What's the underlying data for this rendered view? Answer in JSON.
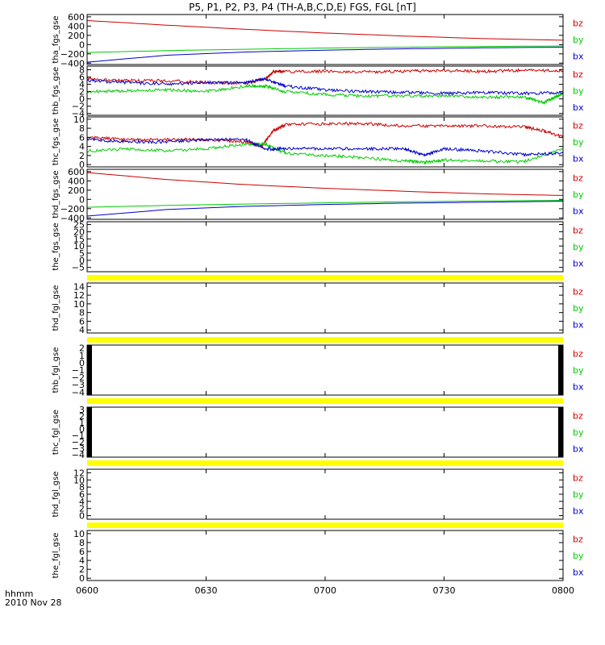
{
  "title": "P5, P1, P2, P3, P4 (TH-A,B,C,D,E) FGS, FGL [nT]",
  "footer": {
    "hhmm": "hhmm",
    "date": "2010 Nov 28"
  },
  "colors": {
    "bz": "#cc0000",
    "by": "#00cc00",
    "bx": "#0000cc",
    "fill": "#ffff00",
    "gap": "#000000"
  },
  "chart_data": {
    "type": "line",
    "x_ticks": [
      "0600",
      "0630",
      "0700",
      "0730",
      "0800"
    ],
    "x_range_minutes": [
      0,
      120
    ],
    "panels": [
      {
        "ylabel": "tha_fgs_gse",
        "yticks": [
          "600",
          "400",
          "200",
          "0",
          "−200",
          "−400"
        ],
        "ylim": [
          -430,
          650
        ],
        "legend": [
          "bz",
          "by",
          "bx"
        ],
        "kind": "lines",
        "series": [
          {
            "name": "bz",
            "x": [
              0,
              20,
              40,
              60,
              80,
              100,
              120
            ],
            "y": [
              520,
              420,
              330,
              250,
              185,
              130,
              95
            ]
          },
          {
            "name": "by",
            "x": [
              0,
              20,
              40,
              60,
              80,
              100,
              120
            ],
            "y": [
              -170,
              -130,
              -100,
              -75,
              -55,
              -40,
              -30
            ]
          },
          {
            "name": "bx",
            "x": [
              0,
              20,
              40,
              60,
              80,
              100,
              120
            ],
            "y": [
              -380,
              -230,
              -160,
              -120,
              -90,
              -70,
              -55
            ]
          }
        ]
      },
      {
        "ylabel": "thb_fgs_gse",
        "yticks": [
          "8",
          "6",
          "4",
          "2",
          "0",
          "−2",
          "−4"
        ],
        "ylim": [
          -4.5,
          9
        ],
        "legend": [
          "bz",
          "by",
          "bx"
        ],
        "kind": "lines",
        "series": [
          {
            "name": "bz",
            "x": [
              0,
              10,
              20,
              30,
              40,
              45,
              47,
              50,
              60,
              70,
              80,
              90,
              100,
              110,
              120
            ],
            "y": [
              5.5,
              5.0,
              5.0,
              4.5,
              4.2,
              5.5,
              7.5,
              7.5,
              7.6,
              7.4,
              7.6,
              7.8,
              7.5,
              7.9,
              7.7
            ]
          },
          {
            "name": "by",
            "x": [
              0,
              10,
              20,
              30,
              40,
              45,
              50,
              60,
              70,
              80,
              90,
              100,
              110,
              115,
              118,
              120
            ],
            "y": [
              2.0,
              2.2,
              2.5,
              2.0,
              3.5,
              3.5,
              2.0,
              1.2,
              0.8,
              0.8,
              0.8,
              0.5,
              0.5,
              -1.0,
              0.5,
              1.5
            ]
          },
          {
            "name": "bx",
            "x": [
              0,
              10,
              20,
              30,
              40,
              45,
              50,
              60,
              70,
              80,
              90,
              100,
              110,
              120
            ],
            "y": [
              5.0,
              4.5,
              4.0,
              4.5,
              4.5,
              5.5,
              3.5,
              2.5,
              2.0,
              1.8,
              1.5,
              1.8,
              1.5,
              1.7
            ]
          }
        ]
      },
      {
        "ylabel": "thc_fgs_gse",
        "yticks": [
          "10",
          "8",
          "6",
          "4",
          "2",
          "0"
        ],
        "ylim": [
          -0.5,
          10.5
        ],
        "legend": [
          "bz",
          "by",
          "bx"
        ],
        "kind": "lines",
        "series": [
          {
            "name": "bz",
            "x": [
              0,
              10,
              20,
              30,
              40,
              44,
              47,
              50,
              60,
              70,
              80,
              90,
              100,
              110,
              115,
              120
            ],
            "y": [
              6.0,
              5.5,
              5.5,
              5.5,
              5.0,
              4.0,
              7.5,
              8.8,
              9.0,
              9.0,
              8.5,
              8.5,
              8.5,
              8.3,
              7.5,
              6.0
            ]
          },
          {
            "name": "by",
            "x": [
              0,
              10,
              20,
              30,
              40,
              45,
              50,
              60,
              70,
              80,
              85,
              90,
              100,
              110,
              120
            ],
            "y": [
              3.0,
              3.5,
              3.0,
              3.5,
              4.5,
              4.5,
              2.5,
              2.0,
              1.5,
              0.8,
              0.5,
              1.0,
              0.8,
              0.6,
              3.5
            ]
          },
          {
            "name": "bx",
            "x": [
              0,
              10,
              20,
              30,
              40,
              45,
              50,
              60,
              70,
              80,
              85,
              90,
              100,
              110,
              120
            ],
            "y": [
              5.5,
              5.0,
              5.0,
              5.5,
              5.5,
              3.5,
              3.5,
              3.5,
              3.5,
              3.5,
              2.0,
              3.5,
              3.0,
              2.2,
              2.5
            ]
          }
        ]
      },
      {
        "ylabel": "thd_fgs_gse",
        "yticks": [
          "600",
          "400",
          "200",
          "0",
          "−200",
          "−400"
        ],
        "ylim": [
          -430,
          650
        ],
        "legend": [
          "bz",
          "by",
          "bx"
        ],
        "kind": "lines",
        "series": [
          {
            "name": "bz",
            "x": [
              0,
              20,
              40,
              60,
              80,
              100,
              120
            ],
            "y": [
              580,
              430,
              320,
              240,
              175,
              120,
              85
            ]
          },
          {
            "name": "by",
            "x": [
              0,
              20,
              40,
              60,
              80,
              100,
              120
            ],
            "y": [
              -170,
              -130,
              -100,
              -75,
              -50,
              -35,
              -20
            ]
          },
          {
            "name": "bx",
            "x": [
              0,
              20,
              40,
              60,
              80,
              100,
              120
            ],
            "y": [
              -360,
              -220,
              -150,
              -110,
              -80,
              -60,
              -40
            ]
          }
        ]
      },
      {
        "ylabel": "the_fgs_gse",
        "yticks": [
          "25",
          "20",
          "15",
          "10",
          "5",
          "0",
          "−5"
        ],
        "ylim": [
          -8,
          27
        ],
        "legend": [
          "bz",
          "by",
          "bx"
        ],
        "kind": "empty",
        "series": []
      },
      {
        "ylabel": "thd_fgl_gse",
        "yticks": [
          "14",
          "12",
          "10",
          "8",
          "6",
          "4"
        ],
        "ylim": [
          3.3,
          14.8
        ],
        "legend": [
          "bz",
          "by",
          "bx"
        ],
        "kind": "empty",
        "series": []
      },
      {
        "ylabel": "thb_fgl_gse",
        "yticks": [
          "2",
          "1",
          "0",
          "−1",
          "−2",
          "−3",
          "−4"
        ],
        "ylim": [
          -4.4,
          2.4
        ],
        "legend": [
          "bz",
          "by",
          "bx"
        ],
        "kind": "gaps",
        "series": []
      },
      {
        "ylabel": "thc_fgl_gse",
        "yticks": [
          "3",
          "2",
          "1",
          "0",
          "−1",
          "−2",
          "−3",
          "−4"
        ],
        "ylim": [
          -4.4,
          3.4
        ],
        "legend": [
          "bz",
          "by",
          "bx"
        ],
        "kind": "gaps",
        "series": []
      },
      {
        "ylabel": "thd_fgl_gse",
        "yticks": [
          "12",
          "10",
          "8",
          "6",
          "4",
          "2",
          "0"
        ],
        "ylim": [
          -1,
          13
        ],
        "legend": [
          "bz",
          "by",
          "bx"
        ],
        "kind": "empty",
        "series": []
      },
      {
        "ylabel": "the_fgl_gse",
        "yticks": [
          "10",
          "8",
          "6",
          "4",
          "2",
          "0"
        ],
        "ylim": [
          -0.5,
          10.7
        ],
        "legend": [
          "bz",
          "by",
          "bx"
        ],
        "kind": "empty",
        "series": []
      }
    ]
  }
}
